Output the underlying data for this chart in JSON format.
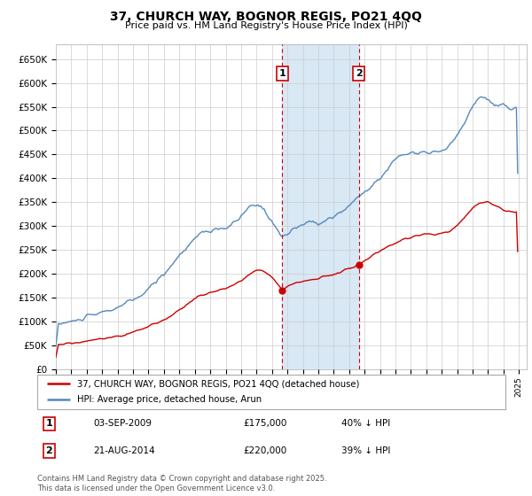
{
  "title": "37, CHURCH WAY, BOGNOR REGIS, PO21 4QQ",
  "subtitle": "Price paid vs. HM Land Registry's House Price Index (HPI)",
  "ylim": [
    0,
    680000
  ],
  "yticks": [
    0,
    50000,
    100000,
    150000,
    200000,
    250000,
    300000,
    350000,
    400000,
    450000,
    500000,
    550000,
    600000,
    650000
  ],
  "legend_label_red": "37, CHURCH WAY, BOGNOR REGIS, PO21 4QQ (detached house)",
  "legend_label_blue": "HPI: Average price, detached house, Arun",
  "ann1_date": "03-SEP-2009",
  "ann1_price": "£175,000",
  "ann1_pct": "40% ↓ HPI",
  "ann1_year": 2009.67,
  "ann1_val": 175000,
  "ann2_date": "21-AUG-2014",
  "ann2_price": "£220,000",
  "ann2_pct": "39% ↓ HPI",
  "ann2_year": 2014.62,
  "ann2_val": 220000,
  "footer": "Contains HM Land Registry data © Crown copyright and database right 2025.\nThis data is licensed under the Open Government Licence v3.0.",
  "red_color": "#cc0000",
  "blue_color": "#5588bb",
  "shading_color": "#d8e8f5",
  "vline_color": "#cc0000",
  "grid_color": "#cccccc",
  "bg_color": "#ffffff",
  "border_color": "#aaaaaa"
}
